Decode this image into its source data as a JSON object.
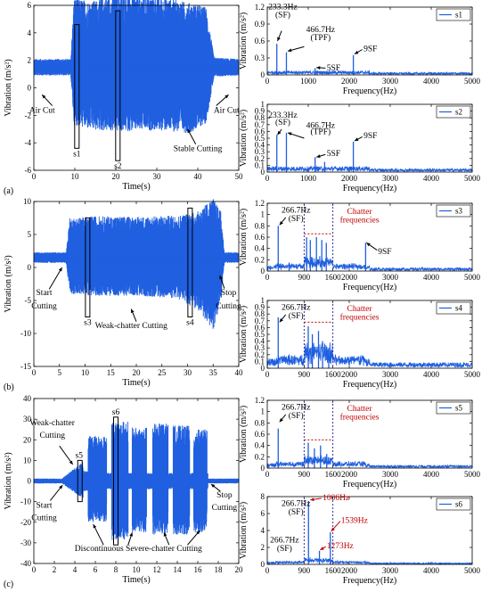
{
  "panel_labels": [
    "(a)",
    "(b)",
    "(c)"
  ],
  "chart_data": [
    {
      "id": "a-time",
      "type": "line",
      "xlabel": "Time(s)",
      "ylabel": "Vibration (m/s²)",
      "xlim": [
        0,
        50
      ],
      "ylim": [
        -6,
        6
      ],
      "xticks": [
        "0",
        "10",
        "20",
        "30",
        "40",
        "50"
      ],
      "yticks": [
        "-6",
        "-4",
        "-2",
        "0",
        "2",
        "4",
        "6"
      ],
      "envelope": {
        "t": [
          0,
          9,
          9.8,
          14,
          20,
          30,
          38,
          42,
          44,
          50
        ],
        "upper": [
          0.6,
          0.6,
          5.1,
          4.8,
          5.4,
          5.2,
          4.7,
          4.4,
          0.7,
          0.6
        ],
        "lower": [
          -0.6,
          -0.6,
          -4.2,
          -4.6,
          -4.7,
          -4.6,
          -4.8,
          -4.1,
          -0.7,
          -0.6
        ]
      },
      "offset": 1.5,
      "windows": [
        {
          "label": "s1",
          "t": 10.5
        },
        {
          "label": "s2",
          "t": 20.5
        }
      ],
      "annotations": [
        {
          "text": "Air Cut",
          "x": 2,
          "y": -1.8
        },
        {
          "text": "Air Cut",
          "x": 47,
          "y": -1.8
        },
        {
          "text": "Stable Cutting",
          "x": 40,
          "y": -4.6
        }
      ]
    },
    {
      "id": "a-s1",
      "type": "line",
      "legend": "s1",
      "xlabel": "Frequency(Hz)",
      "ylabel": "Vibration (m/s²)",
      "xlim": [
        0,
        5000
      ],
      "ylim": [
        0,
        1.2
      ],
      "xticks": [
        "0",
        "1000",
        "2000",
        "3000",
        "4000",
        "5000"
      ],
      "yticks": [
        "0",
        "0.3",
        "0.6",
        "0.9",
        "1.2"
      ],
      "peaks": [
        {
          "x": 233,
          "y": 0.55
        },
        {
          "x": 467,
          "y": 0.4
        },
        {
          "x": 1167,
          "y": 0.12
        },
        {
          "x": 2100,
          "y": 0.35
        }
      ],
      "noise": 0.06,
      "annotations": [
        "233.3Hz",
        "(SF)",
        "466.7Hz",
        "(TPF)",
        "5SF",
        "9SF"
      ]
    },
    {
      "id": "a-s2",
      "type": "line",
      "legend": "s2",
      "xlabel": "Frequency(Hz)",
      "ylabel": "Vibration (m/s²)",
      "xlim": [
        0,
        5000
      ],
      "ylim": [
        0,
        1
      ],
      "xticks": [
        "0",
        "1000",
        "2000",
        "3000",
        "4000",
        "5000"
      ],
      "yticks": [
        "0",
        "0.1",
        "0.2",
        "0.3",
        "0.4",
        "0.5",
        "0.6",
        "0.7",
        "0.8",
        "0.9",
        "1"
      ],
      "peaks": [
        {
          "x": 233,
          "y": 0.55
        },
        {
          "x": 467,
          "y": 0.58
        },
        {
          "x": 1167,
          "y": 0.22
        },
        {
          "x": 1400,
          "y": 0.15
        },
        {
          "x": 2100,
          "y": 0.45
        }
      ],
      "noise": 0.07,
      "annotations": [
        "233.3Hz",
        "(SF)",
        "466.7Hz",
        "(TPF)",
        "5SF",
        "9SF"
      ]
    },
    {
      "id": "b-time",
      "type": "line",
      "xlabel": "Time(s)",
      "ylabel": "Vibration (m/s²)",
      "xlim": [
        0,
        40
      ],
      "ylim": [
        -15,
        10
      ],
      "xticks": [
        "0",
        "5",
        "10",
        "15",
        "20",
        "25",
        "30",
        "35",
        "40"
      ],
      "yticks": [
        "-15",
        "-10",
        "-5",
        "0",
        "5",
        "10"
      ],
      "envelope": {
        "t": [
          0,
          6.3,
          7,
          12,
          20,
          28,
          32,
          35,
          36.5,
          37.2,
          40
        ],
        "upper": [
          0.8,
          0.8,
          6,
          6.3,
          6.2,
          6.4,
          7,
          9,
          7,
          0.8,
          0.8
        ],
        "lower": [
          -0.8,
          -0.8,
          -5.5,
          -5.8,
          -5.8,
          -6.2,
          -8,
          -11,
          -7,
          -0.8,
          -0.8
        ]
      },
      "offset": 1.5,
      "windows": [
        {
          "label": "s3",
          "t": 10.5
        },
        {
          "label": "s4",
          "t": 30.5
        }
      ],
      "annotations": [
        {
          "text": "Start",
          "x": 2,
          "y": -4.2
        },
        {
          "text": "Cutting",
          "x": 2,
          "y": -6.2
        },
        {
          "text": "Weak-chatter Cutting",
          "x": 19,
          "y": -9.2
        },
        {
          "text": "Stop",
          "x": 38,
          "y": -4.2
        },
        {
          "text": "Cutting",
          "x": 38,
          "y": -6.2
        }
      ]
    },
    {
      "id": "b-s3",
      "type": "line",
      "legend": "s3",
      "xlabel": "Frequency(Hz)",
      "ylabel": "Vibration (m/s²)",
      "xlim": [
        0,
        5000
      ],
      "ylim": [
        0,
        1.2
      ],
      "xticks": [
        "0",
        "900",
        "1600",
        "2000",
        "3000",
        "4000",
        "5000"
      ],
      "yticks": [
        "0",
        "0.2",
        "0.4",
        "0.6",
        "0.8",
        "1",
        "1.2"
      ],
      "peaks": [
        {
          "x": 267,
          "y": 0.8
        },
        {
          "x": 533,
          "y": 0.15
        },
        {
          "x": 960,
          "y": 0.6
        },
        {
          "x": 1050,
          "y": 0.55
        },
        {
          "x": 1200,
          "y": 0.6
        },
        {
          "x": 1330,
          "y": 0.55
        },
        {
          "x": 1440,
          "y": 0.5
        },
        {
          "x": 2400,
          "y": 0.5
        }
      ],
      "noise": 0.08,
      "band": [
        900,
        1600
      ],
      "annotations": [
        "266.7Hz",
        "(SF)",
        "Chatter",
        "frequencies",
        "9SF"
      ]
    },
    {
      "id": "b-s4",
      "type": "line",
      "legend": "s4",
      "xlabel": "Frequency(Hz)",
      "ylabel": "Vibration (m/s²)",
      "xlim": [
        0,
        5000
      ],
      "ylim": [
        0,
        1
      ],
      "xticks": [
        "0",
        "900",
        "1600",
        "2000",
        "3000",
        "4000",
        "5000"
      ],
      "yticks": [
        "0",
        "0.1",
        "0.2",
        "0.3",
        "0.4",
        "0.5",
        "0.6",
        "0.7",
        "0.8",
        "0.9",
        "1"
      ],
      "peaks": [
        {
          "x": 267,
          "y": 0.75
        },
        {
          "x": 1000,
          "y": 0.62
        },
        {
          "x": 1100,
          "y": 0.5
        },
        {
          "x": 1250,
          "y": 0.55
        },
        {
          "x": 1350,
          "y": 0.4
        },
        {
          "x": 1500,
          "y": 0.3
        }
      ],
      "noise": 0.12,
      "band": [
        900,
        1600
      ],
      "annotations": [
        "266.7Hz",
        "(SF)",
        "Chatter",
        "frequencies"
      ]
    },
    {
      "id": "c-time",
      "type": "line",
      "xlabel": "Time(s)",
      "ylabel": "Vibration (m/s²)",
      "xlim": [
        0,
        20
      ],
      "ylim": [
        -40,
        40
      ],
      "xticks": [
        "0",
        "2",
        "4",
        "6",
        "8",
        "10",
        "12",
        "14",
        "16",
        "18",
        "20"
      ],
      "yticks": [
        "-40",
        "-30",
        "-20",
        "-10",
        "0",
        "10",
        "20",
        "30",
        "40"
      ],
      "bursts": [
        [
          5.3,
          7.1,
          22,
          -20
        ],
        [
          7.6,
          9.2,
          29,
          -29
        ],
        [
          9.6,
          11,
          26,
          -25
        ],
        [
          11.6,
          13.1,
          28,
          -26
        ],
        [
          13.6,
          15.2,
          27,
          -26
        ],
        [
          15.6,
          16.9,
          25,
          -25
        ]
      ],
      "weak": [
        2.8,
        4.8,
        8,
        -7
      ],
      "offset": 0,
      "windows": [
        {
          "label": "s5",
          "t": 4.5
        },
        {
          "label": "s6",
          "t": 8
        }
      ],
      "annotations": [
        {
          "text": "Weak-chatter",
          "x": 1.8,
          "y": 27
        },
        {
          "text": "Cutting",
          "x": 1.8,
          "y": 21
        },
        {
          "text": "Start",
          "x": 1,
          "y": -13
        },
        {
          "text": "Cutting",
          "x": 1,
          "y": -19
        },
        {
          "text": "Discontinuous Severe-chatter Cutting",
          "x": 10.2,
          "y": -34
        },
        {
          "text": "Stop",
          "x": 18.6,
          "y": -8
        },
        {
          "text": "Cutting",
          "x": 18.6,
          "y": -14
        }
      ]
    },
    {
      "id": "c-s5",
      "type": "line",
      "legend": "s5",
      "xlabel": "Frequency(Hz)",
      "ylabel": "Vibration (m/s²)",
      "xlim": [
        0,
        5000
      ],
      "ylim": [
        0,
        1.2
      ],
      "xticks": [
        "0",
        "900",
        "1600",
        "2000",
        "3000",
        "4000",
        "5000"
      ],
      "yticks": [
        "0",
        "0.2",
        "0.4",
        "0.6",
        "0.8",
        "1",
        "1.2"
      ],
      "peaks": [
        {
          "x": 267,
          "y": 0.7
        },
        {
          "x": 1000,
          "y": 0.45
        },
        {
          "x": 1150,
          "y": 0.35
        },
        {
          "x": 1300,
          "y": 0.4
        },
        {
          "x": 1450,
          "y": 0.25
        }
      ],
      "noise": 0.07,
      "band": [
        900,
        1600
      ],
      "annotations": [
        "266.7Hz",
        "(SF)",
        "Chatter",
        "frequencies"
      ]
    },
    {
      "id": "c-s6",
      "type": "line",
      "legend": "s6",
      "xlabel": "Frequency(Hz)",
      "ylabel": "Vibration (m/s²)",
      "xlim": [
        0,
        5000
      ],
      "ylim": [
        0,
        8
      ],
      "xticks": [
        "0",
        "900",
        "1600",
        "2000",
        "3000",
        "4000",
        "5000"
      ],
      "yticks": [
        "0",
        "2",
        "4",
        "6",
        "8"
      ],
      "peaks": [
        {
          "x": 267,
          "y": 0.3
        },
        {
          "x": 1006,
          "y": 7.5
        },
        {
          "x": 1273,
          "y": 1.6
        },
        {
          "x": 1539,
          "y": 3.8
        }
      ],
      "noise": 0.25,
      "band": [
        900,
        1600
      ],
      "annotations": [
        "266.7Hz",
        "(SF)",
        "1006Hz",
        "1539Hz",
        "1273Hz"
      ]
    }
  ],
  "colors": {
    "signal": "#1f5fe0",
    "red": "#c00000",
    "axis": "#000000",
    "legend_line": "#1f5fe0"
  }
}
